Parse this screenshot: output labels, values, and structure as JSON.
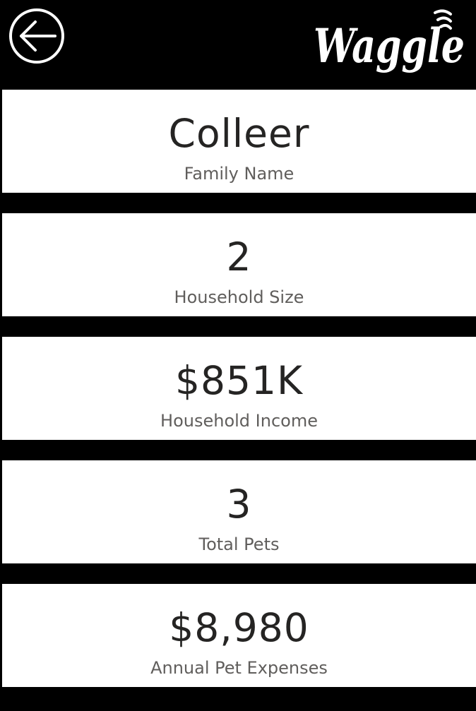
{
  "header": {
    "back_icon": "arrow-left-circle-icon",
    "logo_text": "Waggle",
    "colors": {
      "background": "#000000",
      "foreground": "#ffffff"
    }
  },
  "cards": {
    "family_name": {
      "value": "Colleer",
      "label": "Family Name"
    },
    "household_size": {
      "value": "2",
      "label": "Household Size"
    },
    "household_income": {
      "value": "$851K",
      "label": "Household Income"
    },
    "total_pets": {
      "value": "3",
      "label": "Total Pets"
    },
    "annual_pet_expenses": {
      "value": "$8,980",
      "label": "Annual Pet Expenses"
    }
  },
  "colors": {
    "value_text": "#252423",
    "label_text": "#605e5c",
    "card_background": "#ffffff",
    "separator": "#000000"
  }
}
